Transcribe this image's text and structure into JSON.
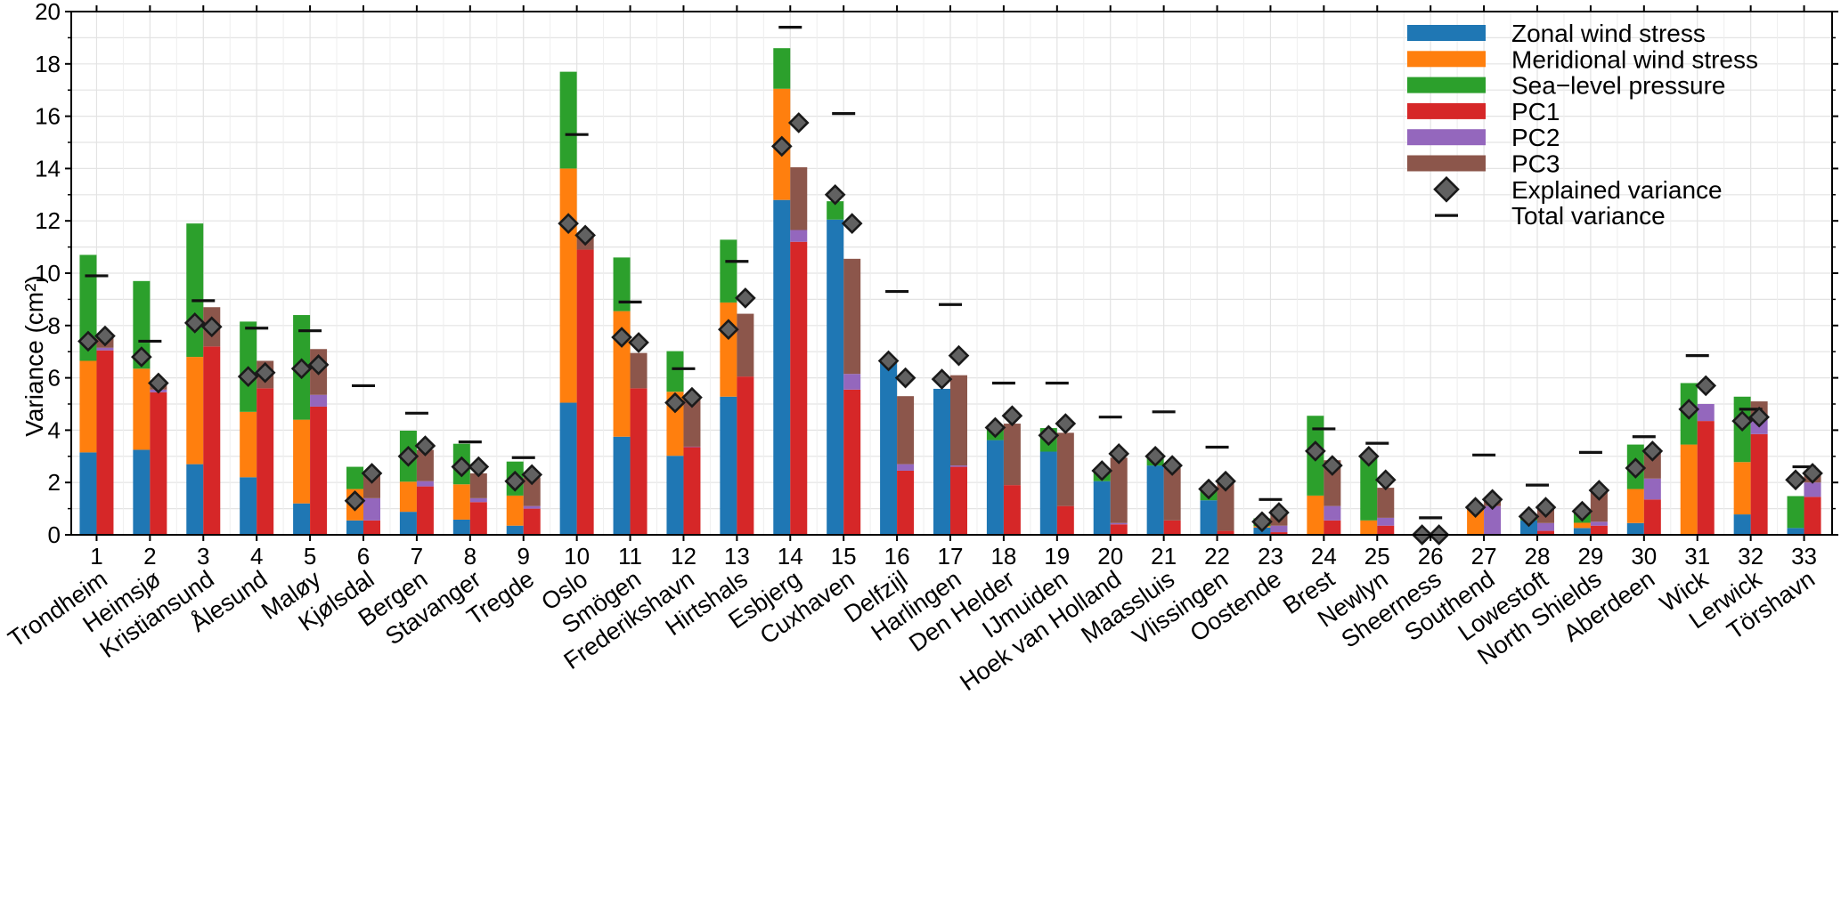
{
  "chart_data": {
    "type": "bar",
    "stacked_pairs": true,
    "ylabel": "Variance (cm²)",
    "ylim": [
      0,
      20
    ],
    "yticks": [
      0,
      2,
      4,
      6,
      8,
      10,
      12,
      14,
      16,
      18,
      20
    ],
    "grid": true,
    "legend_position": "top-right",
    "categories": [
      "1",
      "2",
      "3",
      "4",
      "5",
      "6",
      "7",
      "8",
      "9",
      "10",
      "11",
      "12",
      "13",
      "14",
      "15",
      "16",
      "17",
      "18",
      "19",
      "20",
      "21",
      "22",
      "23",
      "24",
      "25",
      "26",
      "27",
      "28",
      "29",
      "30",
      "31",
      "32",
      "33"
    ],
    "stations": [
      "Trondheim",
      "Heimsjø",
      "Kristiansund",
      "Ålesund",
      "Maløy",
      "Kjølsdal",
      "Bergen",
      "Stavanger",
      "Tregde",
      "Oslo",
      "Smögen",
      "Frederikshavn",
      "Hirtshals",
      "Esbjerg",
      "Cuxhaven",
      "Delfzijl",
      "Harlingen",
      "Den Helder",
      "IJmuiden",
      "Hoek van Holland",
      "Maassluis",
      "Vlissingen",
      "Oostende",
      "Brest",
      "Newlyn",
      "Sheerness",
      "Southend",
      "Lowestoft",
      "North Shields",
      "Aberdeen",
      "Wick",
      "Lerwick",
      "Törshavn"
    ],
    "series": [
      {
        "name": "Zonal wind stress",
        "bar": "left",
        "color": "#1f77b4",
        "values": [
          3.15,
          3.25,
          2.7,
          2.2,
          1.2,
          0.55,
          0.88,
          0.58,
          0.35,
          5.05,
          3.75,
          3.02,
          5.28,
          12.8,
          12.05,
          6.6,
          5.58,
          3.62,
          3.18,
          2.05,
          2.65,
          1.32,
          0.28,
          0,
          0,
          0,
          0,
          0.55,
          0.26,
          0.45,
          0,
          0.78,
          0.26
        ]
      },
      {
        "name": "Meridional wind stress",
        "bar": "left",
        "color": "#ff7f0e",
        "values": [
          3.5,
          3.1,
          4.1,
          2.5,
          3.2,
          1.2,
          1.15,
          1.35,
          1.15,
          8.95,
          4.8,
          2.45,
          3.6,
          4.25,
          0,
          0,
          0,
          0,
          0,
          0,
          0,
          0,
          0.05,
          1.5,
          0.55,
          0,
          1.1,
          0,
          0.2,
          1.3,
          3.45,
          2.0,
          0
        ]
      },
      {
        "name": "Sea−level pressure",
        "bar": "left",
        "color": "#2ca02c",
        "values": [
          4.05,
          3.35,
          5.1,
          3.45,
          4.0,
          0.85,
          1.95,
          1.55,
          1.3,
          3.7,
          2.05,
          1.55,
          2.4,
          1.55,
          0.7,
          0,
          0,
          0.45,
          0.9,
          0.45,
          0.35,
          0.35,
          0.3,
          3.05,
          2.45,
          0,
          0,
          0.15,
          0.48,
          1.7,
          2.35,
          2.5,
          1.22
        ]
      },
      {
        "name": "PC1",
        "bar": "right",
        "color": "#d62728",
        "values": [
          7.05,
          5.45,
          7.2,
          5.6,
          4.9,
          0.55,
          1.85,
          1.25,
          1.0,
          10.9,
          5.6,
          3.35,
          6.05,
          11.2,
          5.55,
          2.45,
          2.6,
          1.9,
          1.1,
          0.4,
          0.55,
          0.15,
          0.1,
          0.55,
          0.35,
          0,
          0,
          0.15,
          0.35,
          1.35,
          4.35,
          3.85,
          1.45
        ]
      },
      {
        "name": "PC2",
        "bar": "right",
        "color": "#9467bd",
        "values": [
          0.1,
          0.1,
          0,
          0,
          0.45,
          0.85,
          0.2,
          0.15,
          0.1,
          0,
          0,
          0.02,
          0,
          0.45,
          0.6,
          0.25,
          0.05,
          0,
          0,
          0.05,
          0,
          0,
          0.25,
          0.55,
          0.3,
          0,
          1.1,
          0.3,
          0.15,
          0.8,
          0.65,
          0.55,
          0.55
        ]
      },
      {
        "name": "PC3",
        "bar": "right",
        "color": "#8c564b",
        "values": [
          0.45,
          0.25,
          1.5,
          1.05,
          1.75,
          0.95,
          1.2,
          0.95,
          1.1,
          0.65,
          1.35,
          1.9,
          2.4,
          2.4,
          4.4,
          2.6,
          3.45,
          2.35,
          2.8,
          2.5,
          2.0,
          1.95,
          0.6,
          1.75,
          1.15,
          0,
          0.2,
          0.55,
          1.2,
          1.15,
          0,
          0.7,
          0.3
        ]
      }
    ],
    "explained_variance": {
      "name": "Explained variance",
      "left": [
        7.4,
        6.8,
        8.1,
        6.05,
        6.35,
        1.3,
        3.0,
        2.6,
        2.05,
        11.9,
        7.55,
        5.05,
        7.85,
        14.85,
        13.0,
        6.65,
        5.95,
        4.1,
        3.8,
        2.45,
        3.0,
        1.75,
        0.5,
        3.2,
        3.0,
        0,
        1.05,
        0.7,
        0.9,
        2.55,
        4.8,
        4.35,
        2.1
      ],
      "right": [
        7.6,
        5.8,
        7.95,
        6.2,
        6.5,
        2.35,
        3.4,
        2.6,
        2.3,
        11.45,
        7.35,
        5.25,
        9.05,
        15.75,
        11.9,
        6.0,
        6.85,
        4.55,
        4.25,
        3.1,
        2.65,
        2.05,
        0.85,
        2.65,
        2.1,
        0,
        1.35,
        1.05,
        1.7,
        3.2,
        5.7,
        4.5,
        2.35
      ]
    },
    "total_variance": {
      "name": "Total variance",
      "values": [
        9.9,
        7.4,
        8.95,
        7.9,
        7.8,
        5.7,
        4.65,
        3.55,
        2.95,
        15.3,
        8.9,
        6.35,
        10.45,
        19.4,
        16.1,
        9.3,
        8.8,
        5.8,
        5.8,
        4.5,
        4.7,
        3.35,
        1.35,
        4.05,
        3.5,
        0.65,
        3.05,
        1.9,
        3.15,
        3.75,
        6.85,
        4.8,
        2.6
      ]
    }
  }
}
